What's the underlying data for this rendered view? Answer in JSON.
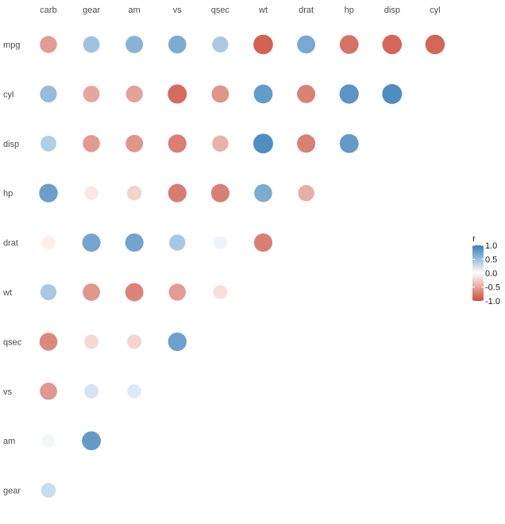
{
  "chart_data": {
    "type": "heatmap",
    "style": "circle-correlogram",
    "x_labels": [
      "carb",
      "gear",
      "am",
      "vs",
      "qsec",
      "wt",
      "drat",
      "hp",
      "disp",
      "cyl"
    ],
    "y_labels": [
      "mpg",
      "cyl",
      "disp",
      "hp",
      "drat",
      "wt",
      "qsec",
      "vs",
      "am",
      "gear"
    ],
    "cells": [
      {
        "x": "carb",
        "y": "mpg",
        "r": -0.55
      },
      {
        "x": "gear",
        "y": "mpg",
        "r": 0.48
      },
      {
        "x": "am",
        "y": "mpg",
        "r": 0.6
      },
      {
        "x": "vs",
        "y": "mpg",
        "r": 0.66
      },
      {
        "x": "qsec",
        "y": "mpg",
        "r": 0.42
      },
      {
        "x": "wt",
        "y": "mpg",
        "r": -0.87
      },
      {
        "x": "drat",
        "y": "mpg",
        "r": 0.68
      },
      {
        "x": "hp",
        "y": "mpg",
        "r": -0.78
      },
      {
        "x": "disp",
        "y": "mpg",
        "r": -0.85
      },
      {
        "x": "cyl",
        "y": "mpg",
        "r": -0.85
      },
      {
        "x": "carb",
        "y": "cyl",
        "r": 0.53
      },
      {
        "x": "gear",
        "y": "cyl",
        "r": -0.49
      },
      {
        "x": "am",
        "y": "cyl",
        "r": -0.52
      },
      {
        "x": "vs",
        "y": "cyl",
        "r": -0.81
      },
      {
        "x": "qsec",
        "y": "cyl",
        "r": -0.59
      },
      {
        "x": "wt",
        "y": "cyl",
        "r": 0.78
      },
      {
        "x": "drat",
        "y": "cyl",
        "r": -0.7
      },
      {
        "x": "hp",
        "y": "cyl",
        "r": 0.83
      },
      {
        "x": "disp",
        "y": "cyl",
        "r": 0.9
      },
      {
        "x": "carb",
        "y": "disp",
        "r": 0.39
      },
      {
        "x": "gear",
        "y": "disp",
        "r": -0.56
      },
      {
        "x": "am",
        "y": "disp",
        "r": -0.59
      },
      {
        "x": "vs",
        "y": "disp",
        "r": -0.71
      },
      {
        "x": "qsec",
        "y": "disp",
        "r": -0.43
      },
      {
        "x": "wt",
        "y": "disp",
        "r": 0.89
      },
      {
        "x": "drat",
        "y": "disp",
        "r": -0.71
      },
      {
        "x": "hp",
        "y": "disp",
        "r": 0.79
      },
      {
        "x": "carb",
        "y": "hp",
        "r": 0.75
      },
      {
        "x": "gear",
        "y": "hp",
        "r": -0.13
      },
      {
        "x": "am",
        "y": "hp",
        "r": -0.24
      },
      {
        "x": "vs",
        "y": "hp",
        "r": -0.72
      },
      {
        "x": "qsec",
        "y": "hp",
        "r": -0.71
      },
      {
        "x": "wt",
        "y": "hp",
        "r": 0.66
      },
      {
        "x": "drat",
        "y": "hp",
        "r": -0.45
      },
      {
        "x": "carb",
        "y": "drat",
        "r": -0.09
      },
      {
        "x": "gear",
        "y": "drat",
        "r": 0.7
      },
      {
        "x": "am",
        "y": "drat",
        "r": 0.71
      },
      {
        "x": "vs",
        "y": "drat",
        "r": 0.44
      },
      {
        "x": "qsec",
        "y": "drat",
        "r": 0.09
      },
      {
        "x": "wt",
        "y": "drat",
        "r": -0.71
      },
      {
        "x": "carb",
        "y": "wt",
        "r": 0.43
      },
      {
        "x": "gear",
        "y": "wt",
        "r": -0.58
      },
      {
        "x": "am",
        "y": "wt",
        "r": -0.69
      },
      {
        "x": "vs",
        "y": "wt",
        "r": -0.55
      },
      {
        "x": "qsec",
        "y": "wt",
        "r": -0.17
      },
      {
        "x": "carb",
        "y": "qsec",
        "r": -0.66
      },
      {
        "x": "gear",
        "y": "qsec",
        "r": -0.21
      },
      {
        "x": "am",
        "y": "qsec",
        "r": -0.23
      },
      {
        "x": "vs",
        "y": "qsec",
        "r": 0.74
      },
      {
        "x": "carb",
        "y": "vs",
        "r": -0.57
      },
      {
        "x": "gear",
        "y": "vs",
        "r": 0.21
      },
      {
        "x": "am",
        "y": "vs",
        "r": 0.17
      },
      {
        "x": "carb",
        "y": "am",
        "r": 0.06
      },
      {
        "x": "gear",
        "y": "am",
        "r": 0.79
      },
      {
        "x": "carb",
        "y": "gear",
        "r": 0.27
      }
    ],
    "legend": {
      "title": "r",
      "position": "right",
      "ticks": [
        1.0,
        0.5,
        0.0,
        -0.5,
        -1.0
      ],
      "tick_labels": [
        "1.0",
        "0.5",
        "0.0",
        "-0.5",
        "-1.0"
      ],
      "range": [
        -1,
        1
      ]
    },
    "color_scale": {
      "low": "#ca4b3b",
      "mid": "#ffffff",
      "high": "#3a7fba"
    },
    "grid": false
  }
}
